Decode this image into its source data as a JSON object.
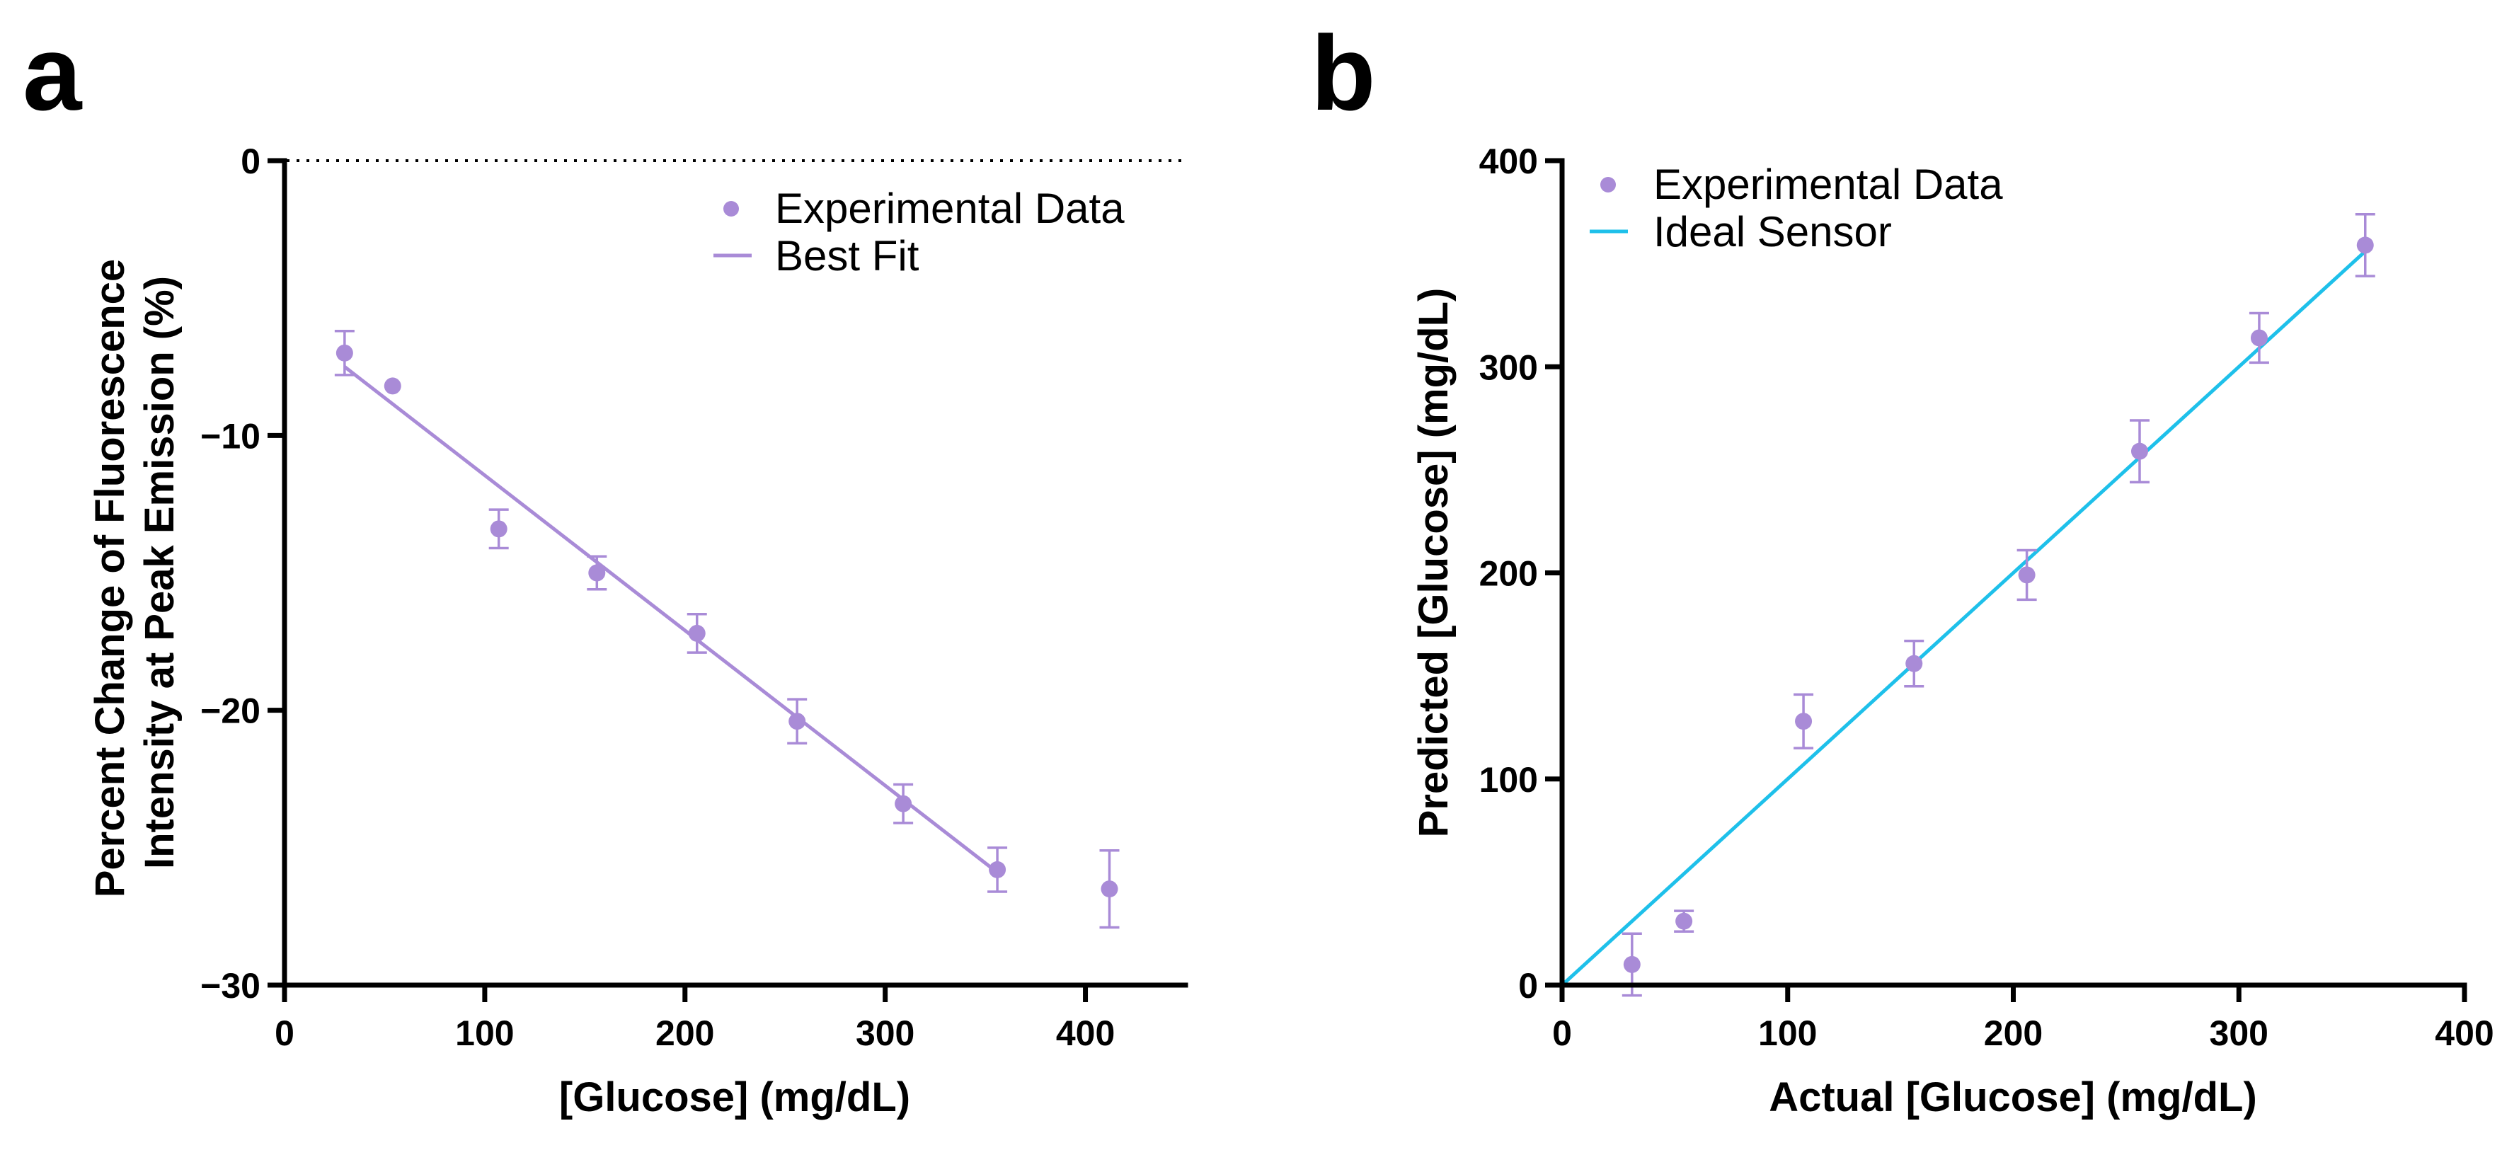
{
  "chart_data": [
    {
      "panel": "a",
      "type": "scatter",
      "title": "",
      "xlabel": "[Glucose] (mg/dL)",
      "ylabel_lines": [
        "Percent Change of Fluorescence",
        "Intensity at Peak Emission (%)"
      ],
      "xlim": [
        0,
        450
      ],
      "ylim": [
        -30,
        0
      ],
      "xticks": [
        0,
        100,
        200,
        300,
        400
      ],
      "yticks": [
        0,
        -10,
        -20,
        -30
      ],
      "ytick_labels": [
        "0",
        "−10",
        "−20",
        "−30"
      ],
      "reference_line": {
        "y": 0,
        "style": "dotted"
      },
      "legend_position": "top-right",
      "series": [
        {
          "name": "Experimental Data",
          "kind": "points",
          "color": "#a98bd7",
          "x": [
            30,
            54,
            107,
            156,
            206,
            256,
            309,
            356,
            412
          ],
          "y": [
            -7.0,
            -8.2,
            -13.4,
            -15.0,
            -17.2,
            -20.4,
            -23.4,
            -25.8,
            -26.5
          ],
          "err": [
            0.8,
            0.0,
            0.7,
            0.6,
            0.7,
            0.8,
            0.7,
            0.8,
            1.4
          ]
        },
        {
          "name": "Best Fit",
          "kind": "line",
          "color": "#a98bd7",
          "x": [
            30,
            356
          ],
          "y": [
            -7.5,
            -25.9
          ]
        }
      ]
    },
    {
      "panel": "b",
      "type": "scatter",
      "title": "",
      "xlabel": "Actual [Glucose] (mg/dL)",
      "ylabel": "Predicted [Glucose] (mg/dL)",
      "xlim": [
        0,
        400
      ],
      "ylim": [
        0,
        400
      ],
      "xticks": [
        0,
        100,
        200,
        300,
        400
      ],
      "yticks": [
        0,
        100,
        200,
        300,
        400
      ],
      "legend_position": "top-left",
      "series": [
        {
          "name": "Experimental Data",
          "kind": "points",
          "color": "#a98bd7",
          "x": [
            31,
            54,
            107,
            156,
            206,
            256,
            309,
            356
          ],
          "y": [
            10,
            31,
            128,
            156,
            199,
            259,
            314,
            359
          ],
          "err": [
            15,
            5,
            13,
            11,
            12,
            15,
            12,
            15
          ]
        },
        {
          "name": "Ideal Sensor",
          "kind": "line",
          "color": "#1ec0ea",
          "x": [
            0,
            356
          ],
          "y": [
            0,
            356
          ]
        }
      ]
    }
  ]
}
